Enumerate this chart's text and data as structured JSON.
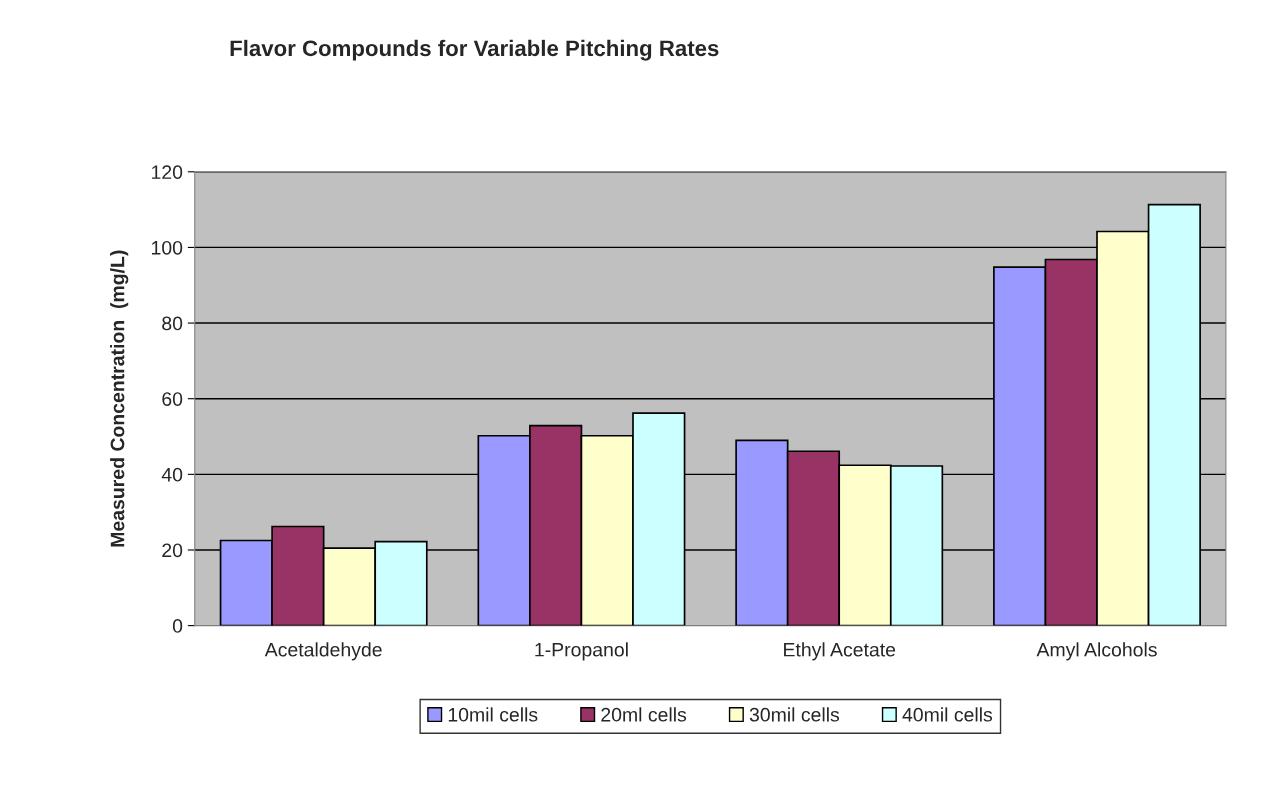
{
  "chart_data": {
    "type": "bar",
    "title": "Flavor Compounds for Variable Pitching Rates",
    "ylabel": "Measured Concentration  (mg/L)",
    "categories": [
      "Acetaldehyde",
      "1-Propanol",
      "Ethyl Acetate",
      "Amyl Alcohols"
    ],
    "series": [
      {
        "name": "10mil cells",
        "color": "#9999ff",
        "values": [
          22.5,
          50.2,
          49.0,
          94.8
        ]
      },
      {
        "name": "20ml cells",
        "color": "#993366",
        "values": [
          26.2,
          52.9,
          46.1,
          96.8
        ]
      },
      {
        "name": "30mil cells",
        "color": "#ffffcc",
        "values": [
          20.5,
          50.2,
          42.4,
          104.2
        ]
      },
      {
        "name": "40mil cells",
        "color": "#ccffff",
        "values": [
          22.2,
          56.2,
          42.2,
          111.3
        ]
      }
    ],
    "ylim": [
      0,
      120
    ],
    "yticks": [
      0,
      20,
      40,
      60,
      80,
      100,
      120
    ],
    "grid": "y",
    "legend": "bottom"
  }
}
